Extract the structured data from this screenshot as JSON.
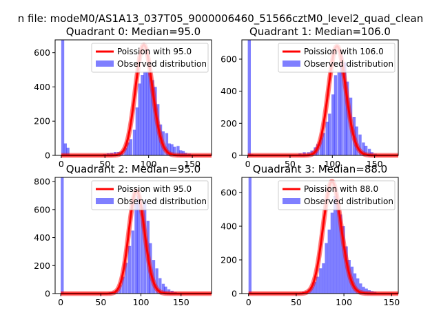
{
  "suptitle": "n file: modeM0/AS1A13_037T05_9000006460_51566cztM0_level2_quad_clean",
  "colors": {
    "observed": "#0000ff",
    "observed_alpha": 0.5,
    "poisson": "#ff0000",
    "poisson_alpha": 0.5
  },
  "chart_data": [
    {
      "type": "bar",
      "title": "Quadrant 0: Median=95.0",
      "median": 95.0,
      "xlim": [
        -7,
        172
      ],
      "ylim": [
        0,
        675
      ],
      "xticks": [
        0,
        50,
        100,
        150
      ],
      "yticks": [
        0,
        200,
        400,
        600
      ],
      "legend": {
        "placement": "upper right",
        "entries": [
          "Poission with 95.0",
          "Observed distribution"
        ]
      },
      "hist_bin_width": 3.4,
      "observed": [
        [
          0,
          680
        ],
        [
          3,
          70
        ],
        [
          6,
          45
        ],
        [
          48,
          8
        ],
        [
          52,
          12
        ],
        [
          56,
          15
        ],
        [
          60,
          20
        ],
        [
          64,
          20
        ],
        [
          68,
          25
        ],
        [
          72,
          45
        ],
        [
          75,
          75
        ],
        [
          78,
          95
        ],
        [
          82,
          150
        ],
        [
          85,
          280
        ],
        [
          88,
          420
        ],
        [
          91,
          470
        ],
        [
          94,
          490
        ],
        [
          97,
          490
        ],
        [
          100,
          480
        ],
        [
          103,
          440
        ],
        [
          106,
          400
        ],
        [
          109,
          300
        ],
        [
          112,
          180
        ],
        [
          115,
          140
        ],
        [
          119,
          130
        ],
        [
          122,
          70
        ],
        [
          125,
          65
        ],
        [
          128,
          50
        ],
        [
          132,
          55
        ],
        [
          135,
          30
        ],
        [
          138,
          25
        ],
        [
          141,
          15
        ],
        [
          145,
          10
        ],
        [
          148,
          5
        ],
        [
          152,
          3
        ],
        [
          156,
          2
        ],
        [
          162,
          1
        ]
      ],
      "poisson_series": {
        "name": "Poission with 95.0",
        "mean": 95.0,
        "scale": 645
      }
    },
    {
      "type": "bar",
      "title": "Quadrant 1: Median=106.0",
      "median": 106.0,
      "xlim": [
        -7,
        178
      ],
      "ylim": [
        0,
        720
      ],
      "xticks": [
        0,
        50,
        100,
        150
      ],
      "yticks": [
        0,
        200,
        400,
        600
      ],
      "legend": {
        "placement": "upper right",
        "entries": [
          "Poission with 106.0",
          "Observed distribution"
        ]
      },
      "hist_bin_width": 3.6,
      "observed": [
        [
          0,
          720
        ],
        [
          3,
          8
        ],
        [
          60,
          12
        ],
        [
          65,
          20
        ],
        [
          70,
          20
        ],
        [
          74,
          30
        ],
        [
          78,
          50
        ],
        [
          81,
          70
        ],
        [
          85,
          110
        ],
        [
          88,
          140
        ],
        [
          92,
          210
        ],
        [
          95,
          260
        ],
        [
          99,
          380
        ],
        [
          102,
          500
        ],
        [
          106,
          520
        ],
        [
          109,
          620
        ],
        [
          113,
          580
        ],
        [
          116,
          460
        ],
        [
          120,
          360
        ],
        [
          124,
          240
        ],
        [
          127,
          180
        ],
        [
          131,
          130
        ],
        [
          135,
          80
        ],
        [
          138,
          60
        ],
        [
          142,
          40
        ],
        [
          145,
          20
        ],
        [
          149,
          10
        ],
        [
          153,
          5
        ],
        [
          157,
          2
        ]
      ],
      "poisson_series": {
        "name": "Poission with 106.0",
        "mean": 106.0,
        "scale": 680
      }
    },
    {
      "type": "bar",
      "title": "Quadrant 2: Median=95.0",
      "median": 95.0,
      "xlim": [
        -7,
        188
      ],
      "ylim": [
        0,
        830
      ],
      "xticks": [
        0,
        50,
        100,
        150
      ],
      "yticks": [
        0,
        200,
        400,
        600,
        800
      ],
      "legend": {
        "placement": "upper right",
        "entries": [
          "Poission with 95.0",
          "Observed distribution"
        ]
      },
      "hist_bin_width": 3.7,
      "observed": [
        [
          0,
          830
        ],
        [
          55,
          5
        ],
        [
          60,
          10
        ],
        [
          64,
          15
        ],
        [
          68,
          25
        ],
        [
          72,
          60
        ],
        [
          76,
          120
        ],
        [
          80,
          220
        ],
        [
          84,
          340
        ],
        [
          88,
          450
        ],
        [
          92,
          650
        ],
        [
          95,
          700
        ],
        [
          99,
          620
        ],
        [
          103,
          660
        ],
        [
          107,
          520
        ],
        [
          110,
          360
        ],
        [
          114,
          240
        ],
        [
          118,
          180
        ],
        [
          122,
          110
        ],
        [
          126,
          70
        ],
        [
          129,
          50
        ],
        [
          133,
          30
        ],
        [
          137,
          20
        ],
        [
          141,
          10
        ],
        [
          145,
          5
        ],
        [
          150,
          3
        ]
      ],
      "poisson_series": {
        "name": "Poission with 95.0",
        "mean": 95.0,
        "scale": 735
      }
    },
    {
      "type": "bar",
      "title": "Quadrant 3: Median=88.0",
      "median": 88.0,
      "xlim": [
        -7,
        157
      ],
      "ylim": [
        0,
        690
      ],
      "xticks": [
        0,
        50,
        100,
        150
      ],
      "yticks": [
        0,
        200,
        400,
        600
      ],
      "legend": {
        "placement": "upper right",
        "entries": [
          "Poission with 88.0",
          "Observed distribution"
        ]
      },
      "hist_bin_width": 3.1,
      "observed": [
        [
          0,
          690
        ],
        [
          52,
          5
        ],
        [
          56,
          10
        ],
        [
          59,
          15
        ],
        [
          62,
          25
        ],
        [
          65,
          40
        ],
        [
          68,
          70
        ],
        [
          71,
          100
        ],
        [
          74,
          150
        ],
        [
          77,
          180
        ],
        [
          80,
          300
        ],
        [
          83,
          380
        ],
        [
          86,
          480
        ],
        [
          89,
          580
        ],
        [
          92,
          560
        ],
        [
          95,
          470
        ],
        [
          98,
          400
        ],
        [
          101,
          280
        ],
        [
          104,
          200
        ],
        [
          107,
          160
        ],
        [
          110,
          120
        ],
        [
          113,
          90
        ],
        [
          116,
          60
        ],
        [
          119,
          40
        ],
        [
          122,
          30
        ],
        [
          125,
          20
        ],
        [
          128,
          15
        ],
        [
          131,
          10
        ],
        [
          135,
          5
        ],
        [
          140,
          3
        ],
        [
          145,
          2
        ]
      ],
      "poisson_series": {
        "name": "Poission with 88.0",
        "mean": 88.0,
        "scale": 665
      }
    }
  ]
}
